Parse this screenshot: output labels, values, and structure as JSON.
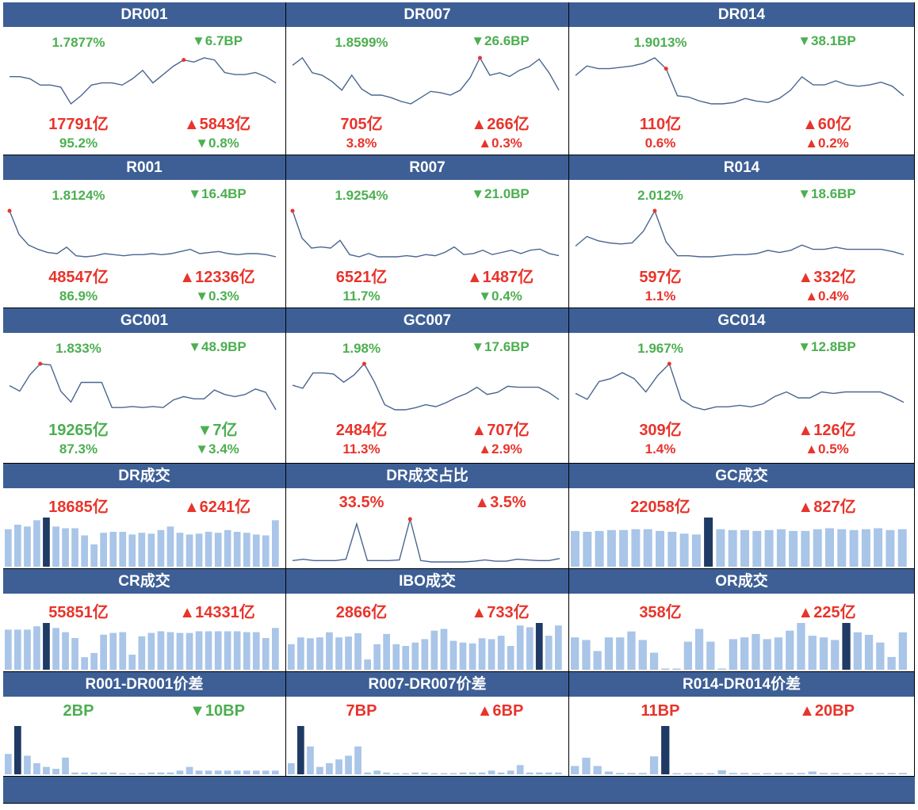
{
  "colors": {
    "header": "#3d5f95",
    "up": "#e8342b",
    "down": "#4caf50",
    "bar": "#a9c5e8",
    "bar_highlight": "#1f3a64",
    "line": "#4a6690",
    "dot": "#e8342b"
  },
  "rows": [
    {
      "kind": "line",
      "cells": [
        {
          "title": "DR001",
          "rate": "1.7877%",
          "rate_color": "down",
          "rate_change": "▼6.7BP",
          "rate_change_color": "down",
          "volume": "17791亿",
          "volume_color": "up",
          "volume_change": "▲5843亿",
          "volume_change_color": "up",
          "share": "95.2%",
          "share_color": "down",
          "share_change": "▼0.8%",
          "share_change_color": "down",
          "series": [
            1.79,
            1.79,
            1.78,
            1.75,
            1.75,
            1.74,
            1.66,
            1.7,
            1.75,
            1.76,
            1.76,
            1.75,
            1.78,
            1.82,
            1.76,
            1.8,
            1.84,
            1.87,
            1.86,
            1.88,
            1.87,
            1.81,
            1.8,
            1.8,
            1.81,
            1.79,
            1.76
          ],
          "peak": 17
        },
        {
          "title": "DR007",
          "rate": "1.8599%",
          "rate_color": "down",
          "rate_change": "▼26.6BP",
          "rate_change_color": "down",
          "series": [
            2.06,
            2.12,
            2.0,
            1.98,
            1.93,
            1.86,
            1.98,
            1.87,
            1.82,
            1.82,
            1.8,
            1.77,
            1.75,
            1.8,
            1.85,
            1.84,
            1.82,
            1.86,
            1.96,
            2.12,
            1.98,
            2.0,
            1.97,
            2.02,
            2.05,
            2.11,
            2.0,
            1.86
          ],
          "peak": 19,
          "volume": "705亿",
          "volume_color": "up",
          "volume_change": "▲266亿",
          "volume_change_color": "up",
          "share": "3.8%",
          "share_color": "up",
          "share_change": "▲0.3%",
          "share_change_color": "up"
        },
        {
          "title": "DR014",
          "rate": "1.9013%",
          "rate_color": "down",
          "rate_change": "▼38.1BP",
          "rate_change_color": "down",
          "series": [
            2.05,
            2.12,
            2.1,
            2.1,
            2.11,
            2.12,
            2.14,
            2.18,
            2.1,
            1.9,
            1.89,
            1.86,
            1.84,
            1.84,
            1.85,
            1.88,
            1.86,
            1.85,
            1.88,
            1.94,
            2.04,
            1.98,
            1.98,
            2.01,
            1.98,
            1.97,
            1.98,
            2.0,
            1.97,
            1.9
          ],
          "peak": 8,
          "volume": "110亿",
          "volume_color": "up",
          "volume_change": "▲60亿",
          "volume_change_color": "up",
          "share": "0.6%",
          "share_color": "up",
          "share_change": "▲0.2%",
          "share_change_color": "up"
        }
      ]
    },
    {
      "kind": "line",
      "cells": [
        {
          "title": "R001",
          "rate": "1.8124%",
          "rate_color": "down",
          "rate_change": "▼16.4BP",
          "rate_change_color": "down",
          "series": [
            2.32,
            2.1,
            2.0,
            1.96,
            1.93,
            1.92,
            1.98,
            1.9,
            1.89,
            1.9,
            1.92,
            1.91,
            1.9,
            1.91,
            1.91,
            1.92,
            1.91,
            1.92,
            1.94,
            1.96,
            1.92,
            1.93,
            1.94,
            1.92,
            1.91,
            1.92,
            1.92,
            1.91,
            1.89
          ],
          "peak": 0,
          "volume": "48547亿",
          "volume_color": "up",
          "volume_change": "▲12336亿",
          "volume_change_color": "up",
          "share": "86.9%",
          "share_color": "down",
          "share_change": "▼0.3%",
          "share_change_color": "down"
        },
        {
          "title": "R007",
          "rate": "1.9254%",
          "rate_color": "down",
          "rate_change": "▼21.0BP",
          "rate_change_color": "down",
          "series": [
            2.4,
            2.15,
            2.06,
            2.07,
            2.06,
            2.13,
            2.0,
            1.98,
            2.01,
            1.98,
            1.98,
            1.98,
            1.99,
            1.98,
            2.0,
            1.99,
            2.02,
            2.07,
            2.0,
            2.01,
            2.04,
            2.0,
            2.02,
            2.04,
            2.01,
            2.04,
            2.05,
            2.01,
            1.99
          ],
          "peak": 0,
          "volume": "6521亿",
          "volume_color": "up",
          "volume_change": "▲1487亿",
          "volume_change_color": "up",
          "share": "11.7%",
          "share_color": "down",
          "share_change": "▼0.4%",
          "share_change_color": "down"
        },
        {
          "title": "R014",
          "rate": "2.012%",
          "rate_color": "down",
          "rate_change": "▼18.6BP",
          "rate_change_color": "down",
          "series": [
            2.09,
            2.18,
            2.14,
            2.12,
            2.11,
            2.12,
            2.23,
            2.42,
            2.13,
            2.0,
            2.0,
            1.99,
            1.99,
            2.0,
            2.01,
            2.01,
            2.02,
            2.05,
            2.03,
            2.05,
            2.1,
            2.06,
            2.06,
            2.08,
            2.06,
            2.06,
            2.06,
            2.06,
            2.04,
            2.01
          ],
          "peak": 7,
          "volume": "597亿",
          "volume_color": "up",
          "volume_change": "▲332亿",
          "volume_change_color": "up",
          "share": "1.1%",
          "share_color": "up",
          "share_change": "▲0.4%",
          "share_change_color": "up"
        }
      ]
    },
    {
      "kind": "line",
      "cells": [
        {
          "title": "GC001",
          "rate": "1.833%",
          "rate_color": "down",
          "rate_change": "▼48.9BP",
          "rate_change_color": "down",
          "series": [
            2.0,
            1.95,
            2.1,
            2.2,
            2.19,
            1.95,
            1.85,
            2.03,
            2.03,
            2.03,
            1.8,
            1.8,
            1.81,
            1.8,
            1.81,
            1.8,
            1.87,
            1.9,
            1.88,
            1.88,
            1.96,
            1.92,
            1.9,
            1.92,
            1.97,
            1.94,
            1.78
          ],
          "peak": 3,
          "volume": "19265亿",
          "volume_color": "down",
          "volume_change": "▼7亿",
          "volume_change_color": "down",
          "share": "87.3%",
          "share_color": "down",
          "share_change": "▼3.4%",
          "share_change_color": "down"
        },
        {
          "title": "GC007",
          "rate": "1.98%",
          "rate_color": "down",
          "rate_change": "▼17.6BP",
          "rate_change_color": "down",
          "series": [
            2.12,
            2.09,
            2.24,
            2.24,
            2.23,
            2.15,
            2.22,
            2.33,
            2.15,
            1.93,
            1.88,
            1.88,
            1.9,
            1.93,
            1.91,
            1.95,
            2.0,
            2.04,
            2.1,
            2.03,
            2.05,
            2.11,
            2.1,
            2.1,
            2.1,
            2.05,
            1.98
          ],
          "peak": 7,
          "volume": "2484亿",
          "volume_color": "up",
          "volume_change": "▲707亿",
          "volume_change_color": "up",
          "share": "11.3%",
          "share_color": "up",
          "share_change": "▲2.9%",
          "share_change_color": "up"
        },
        {
          "title": "GC014",
          "rate": "1.967%",
          "rate_color": "down",
          "rate_change": "▼12.8BP",
          "rate_change_color": "down",
          "series": [
            2.04,
            2.0,
            2.12,
            2.14,
            2.18,
            2.14,
            2.05,
            2.16,
            2.24,
            2.0,
            1.95,
            1.93,
            1.95,
            1.95,
            1.96,
            1.95,
            1.97,
            2.02,
            2.05,
            2.01,
            2.01,
            2.05,
            2.04,
            2.05,
            2.05,
            2.05,
            2.05,
            2.02,
            1.98
          ],
          "peak": 8,
          "volume": "309亿",
          "volume_color": "up",
          "volume_change": "▲126亿",
          "volume_change_color": "up",
          "share": "1.4%",
          "share_color": "up",
          "share_change": "▲0.5%",
          "share_change_color": "up"
        }
      ]
    },
    {
      "kind": "bar",
      "cells": [
        {
          "title": "DR成交",
          "value": "18685亿",
          "value_color": "up",
          "change": "▲6241亿",
          "change_color": "up",
          "chart": "bar",
          "series": [
            42,
            47,
            45,
            52,
            55,
            45,
            43,
            43,
            35,
            25,
            38,
            39,
            39,
            36,
            38,
            37,
            41,
            45,
            38,
            36,
            37,
            39,
            38,
            41,
            39,
            38,
            36,
            35,
            52
          ],
          "highlight": 4
        },
        {
          "title": "DR成交占比",
          "value": "33.5%",
          "value_color": "up",
          "change": "▲3.5%",
          "change_color": "up",
          "chart": "line",
          "series": [
            3.0,
            4.0,
            3.0,
            3.0,
            3.0,
            4.0,
            30.0,
            3.0,
            3.0,
            3.0,
            3.5,
            33.5,
            3.0,
            2.0,
            2.0,
            2.0,
            2.0,
            2.5,
            3.5,
            2.5,
            2.5,
            4.0,
            3.5,
            3.0,
            3.0,
            4.5
          ],
          "peak": 11
        },
        {
          "title": "GC成交",
          "value": "22058亿",
          "value_color": "up",
          "change": "▲827亿",
          "change_color": "up",
          "chart": "bar",
          "series": [
            40,
            39,
            40,
            41,
            41,
            42,
            42,
            40,
            39,
            37,
            36,
            55,
            42,
            41,
            41,
            40,
            41,
            42,
            40,
            40,
            42,
            43,
            42,
            41,
            42,
            43,
            41,
            42
          ],
          "highlight": 11
        }
      ]
    },
    {
      "kind": "bar",
      "cells": [
        {
          "title": "CR成交",
          "value": "55851亿",
          "value_color": "up",
          "change": "▲14331亿",
          "change_color": "up",
          "chart": "bar",
          "series": [
            48,
            48,
            48,
            52,
            56,
            50,
            45,
            38,
            15,
            20,
            42,
            44,
            45,
            18,
            40,
            44,
            46,
            45,
            44,
            44,
            46,
            46,
            46,
            46,
            46,
            45,
            45,
            38,
            50
          ],
          "highlight": 4
        },
        {
          "title": "IBO成交",
          "value": "2866亿",
          "value_color": "up",
          "change": "▲733亿",
          "change_color": "up",
          "chart": "bar",
          "series": [
            30,
            38,
            37,
            38,
            44,
            38,
            39,
            43,
            12,
            30,
            42,
            30,
            28,
            32,
            36,
            46,
            48,
            34,
            32,
            31,
            37,
            36,
            40,
            28,
            52,
            50,
            55,
            40,
            52
          ],
          "highlight": 26
        },
        {
          "title": "OR成交",
          "value": "358亿",
          "value_color": "up",
          "change": "▲225亿",
          "change_color": "up",
          "chart": "bar",
          "series": [
            38,
            35,
            22,
            38,
            38,
            45,
            35,
            20,
            1,
            1,
            33,
            48,
            33,
            1,
            36,
            38,
            42,
            36,
            38,
            46,
            55,
            40,
            38,
            35,
            55,
            44,
            41,
            32,
            15,
            44
          ],
          "highlight": 24
        }
      ]
    },
    {
      "kind": "bar",
      "cells": [
        {
          "title": "R001-DR001价差",
          "value": "2BP",
          "value_color": "down",
          "change": "▼10BP",
          "change_color": "down",
          "chart": "bar",
          "series": [
            11,
            26,
            10,
            6,
            4,
            3,
            9,
            1,
            1,
            1,
            1,
            1,
            0,
            0,
            0,
            1,
            1,
            1,
            2,
            4,
            2,
            2,
            2,
            2,
            2,
            2,
            2,
            2,
            2
          ],
          "highlight": 1
        },
        {
          "title": "R007-DR007价差",
          "value": "7BP",
          "value_color": "up",
          "change": "▲6BP",
          "change_color": "up",
          "chart": "bar",
          "series": [
            6,
            26,
            15,
            4,
            6,
            8,
            10,
            15,
            1,
            2,
            1,
            0,
            0,
            1,
            1,
            0,
            0,
            0,
            1,
            1,
            1,
            2,
            1,
            2,
            5,
            1,
            1,
            1,
            1
          ],
          "highlight": 1
        },
        {
          "title": "R014-DR014价差",
          "value": "11BP",
          "value_color": "up",
          "change": "▲20BP",
          "change_color": "up",
          "chart": "bar",
          "series": [
            6,
            12,
            6,
            2,
            1,
            1,
            1,
            13,
            35,
            0,
            0,
            0,
            0,
            3,
            1,
            1,
            0,
            0,
            1,
            1,
            1,
            2,
            1,
            1,
            0,
            0,
            1,
            1,
            1,
            1
          ],
          "highlight": 8
        }
      ]
    }
  ]
}
